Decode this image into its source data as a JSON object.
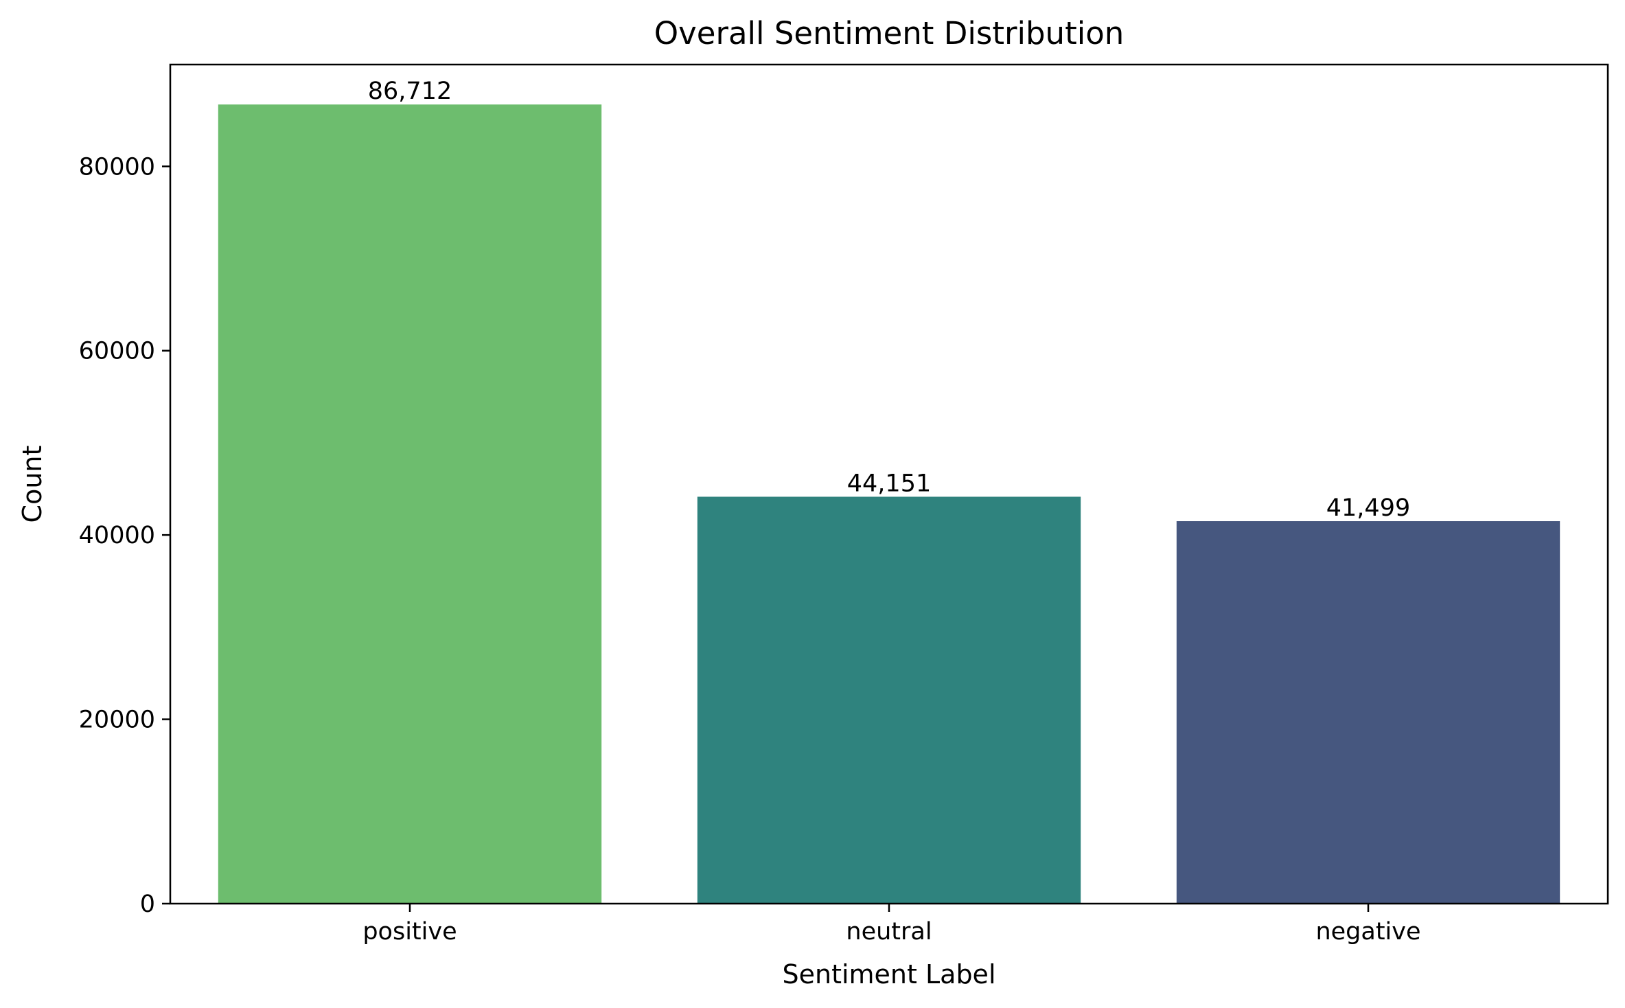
{
  "chart_data": {
    "type": "bar",
    "title": "Overall Sentiment Distribution",
    "xlabel": "Sentiment Label",
    "ylabel": "Count",
    "categories": [
      "positive",
      "neutral",
      "negative"
    ],
    "values": [
      86712,
      44151,
      41499
    ],
    "value_labels": [
      "86,712",
      "44,151",
      "41,499"
    ],
    "colors": [
      "#6dbd6e",
      "#2f837e",
      "#46577f"
    ],
    "ylim": [
      0,
      91047.6
    ],
    "yticks": [
      0,
      20000,
      40000,
      60000,
      80000
    ],
    "ytick_labels": [
      "0",
      "20000",
      "40000",
      "60000",
      "80000"
    ],
    "grid": false,
    "legend": "none"
  }
}
